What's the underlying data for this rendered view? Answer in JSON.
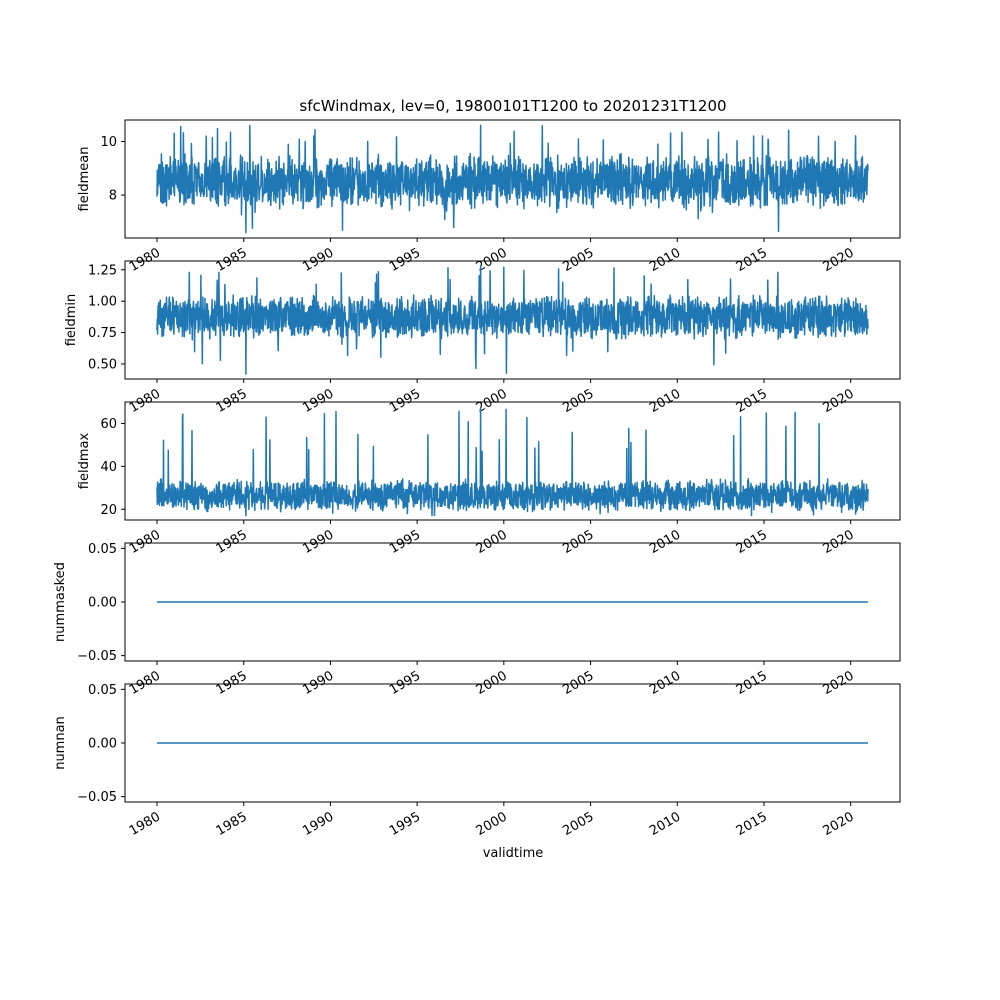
{
  "chart_data": {
    "type": "line",
    "title": "sfcWindmax, lev=0, 19800101T1200 to 20201231T1200",
    "xlabel": "validtime",
    "x_range": [
      "1980-01-01",
      "2020-12-31"
    ],
    "x_ticks": [
      "1980",
      "1985",
      "1990",
      "1995",
      "2000",
      "2005",
      "2010",
      "2015",
      "2020"
    ],
    "line_color": "#1f77b4",
    "panels": [
      {
        "ylabel": "fieldmean",
        "ylim": [
          6.4,
          10.8
        ],
        "y_ticks": [
          8,
          10
        ],
        "y_tick_labels": [
          "8",
          "10"
        ],
        "series_summary": {
          "baseline": 8.5,
          "typical_low": 7.6,
          "typical_high": 9.4,
          "min": 6.6,
          "max": 10.6
        },
        "x_ticks_visible": true,
        "x_tick_labels_cut": true
      },
      {
        "ylabel": "fieldmin",
        "ylim": [
          0.38,
          1.32
        ],
        "y_ticks": [
          0.5,
          0.75,
          1.0,
          1.25
        ],
        "y_tick_labels": [
          "0.50",
          "0.75",
          "1.00",
          "1.25"
        ],
        "series_summary": {
          "baseline": 0.87,
          "typical_low": 0.72,
          "typical_high": 1.03,
          "min": 0.42,
          "max": 1.28
        },
        "x_ticks_visible": true,
        "x_tick_labels_cut": true
      },
      {
        "ylabel": "fieldmax",
        "ylim": [
          15,
          70
        ],
        "y_ticks": [
          20,
          40,
          60
        ],
        "y_tick_labels": [
          "20",
          "40",
          "60"
        ],
        "series_summary": {
          "baseline": 25,
          "typical_low": 20,
          "typical_high": 33,
          "min": 17,
          "max": 67
        },
        "x_ticks_visible": true,
        "x_tick_labels_cut": true
      },
      {
        "ylabel": "nummasked",
        "ylim": [
          -0.055,
          0.055
        ],
        "y_ticks": [
          -0.05,
          0.0,
          0.05
        ],
        "y_tick_labels": [
          "−0.05",
          "0.00",
          "0.05"
        ],
        "series_summary": {
          "constant": 0.0
        },
        "x_ticks_visible": true,
        "x_tick_labels_cut": true
      },
      {
        "ylabel": "numnan",
        "ylim": [
          -0.055,
          0.055
        ],
        "y_ticks": [
          -0.05,
          0.0,
          0.05
        ],
        "y_tick_labels": [
          "−0.05",
          "0.00",
          "0.05"
        ],
        "series_summary": {
          "constant": 0.0
        },
        "x_ticks_visible": true,
        "x_tick_labels_cut": false
      }
    ]
  }
}
